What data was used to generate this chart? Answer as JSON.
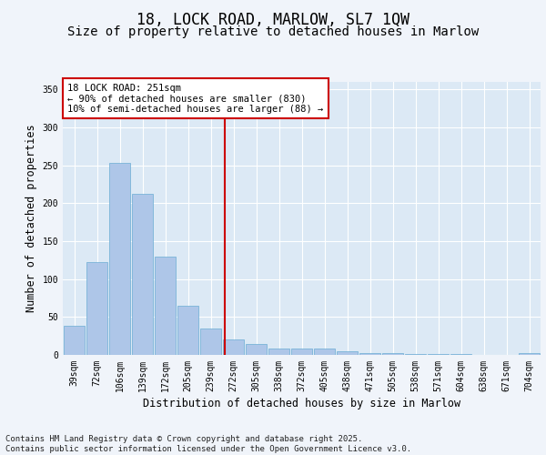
{
  "title": "18, LOCK ROAD, MARLOW, SL7 1QW",
  "subtitle": "Size of property relative to detached houses in Marlow",
  "xlabel": "Distribution of detached houses by size in Marlow",
  "ylabel": "Number of detached properties",
  "categories": [
    "39sqm",
    "72sqm",
    "106sqm",
    "139sqm",
    "172sqm",
    "205sqm",
    "239sqm",
    "272sqm",
    "305sqm",
    "338sqm",
    "372sqm",
    "405sqm",
    "438sqm",
    "471sqm",
    "505sqm",
    "538sqm",
    "571sqm",
    "604sqm",
    "638sqm",
    "671sqm",
    "704sqm"
  ],
  "values": [
    39,
    122,
    253,
    213,
    130,
    65,
    35,
    20,
    14,
    9,
    9,
    9,
    5,
    2,
    2,
    1,
    1,
    1,
    0,
    0,
    3
  ],
  "bar_color": "#aec6e8",
  "bar_edge_color": "#6aacd4",
  "background_color": "#dce9f5",
  "grid_color": "#ffffff",
  "fig_background": "#f0f4fa",
  "vline_x": 6.62,
  "vline_color": "#cc0000",
  "annotation_box_text": "18 LOCK ROAD: 251sqm\n← 90% of detached houses are smaller (830)\n10% of semi-detached houses are larger (88) →",
  "footer_text": "Contains HM Land Registry data © Crown copyright and database right 2025.\nContains public sector information licensed under the Open Government Licence v3.0.",
  "ylim": [
    0,
    360
  ],
  "yticks": [
    0,
    50,
    100,
    150,
    200,
    250,
    300,
    350
  ],
  "title_fontsize": 12,
  "subtitle_fontsize": 10,
  "label_fontsize": 8.5,
  "tick_fontsize": 7,
  "footer_fontsize": 6.5,
  "ann_fontsize": 7.5
}
